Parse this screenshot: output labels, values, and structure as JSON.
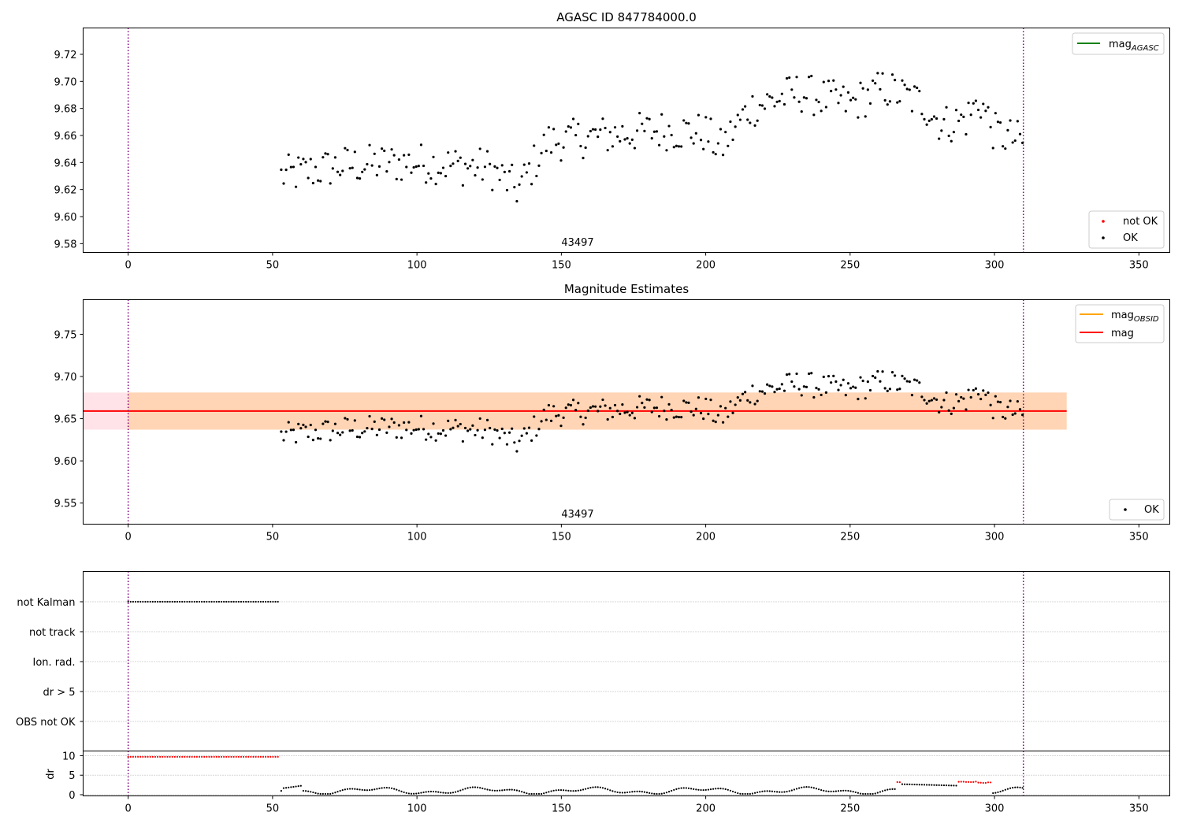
{
  "chart_data": [
    {
      "type": "scatter",
      "title": "AGASC ID 847784000.0",
      "xlim": [
        -15.6,
        360.7
      ],
      "ylim": [
        9.5735,
        9.7395
      ],
      "xticks": [
        0,
        50,
        100,
        150,
        200,
        250,
        300,
        350
      ],
      "yticks": [
        9.58,
        9.6,
        9.62,
        9.64,
        9.66,
        9.68,
        9.7,
        9.72
      ],
      "ytick_labels": [
        "9.58",
        "9.60",
        "9.62",
        "9.64",
        "9.66",
        "9.68",
        "9.70",
        "9.72"
      ],
      "vlines": [
        0,
        310
      ],
      "obsid_label": {
        "text": "43497",
        "x": 155
      },
      "legend_upper": {
        "placement": "top-right",
        "entries": [
          {
            "label": "mag",
            "subscript": "AGASC",
            "color": "#008000"
          }
        ]
      },
      "legend_lower": {
        "placement": "bottom-right",
        "entries": [
          {
            "label": "not OK",
            "color": "#ff0000",
            "marker": "dot"
          },
          {
            "label": "OK",
            "color": "#000000",
            "marker": "dot"
          }
        ]
      },
      "series": [
        {
          "name": "OK",
          "color": "#000000"
        }
      ]
    },
    {
      "type": "scatter",
      "title": "Magnitude Estimates",
      "xlim": [
        -15.6,
        360.7
      ],
      "ylim": [
        9.525,
        9.791
      ],
      "xticks": [
        0,
        50,
        100,
        150,
        200,
        250,
        300,
        350
      ],
      "yticks": [
        9.55,
        9.6,
        9.65,
        9.7,
        9.75
      ],
      "ytick_labels": [
        "9.55",
        "9.60",
        "9.65",
        "9.70",
        "9.75"
      ],
      "vlines": [
        0,
        310
      ],
      "obsid_label": {
        "text": "43497",
        "x": 155
      },
      "mag_line": {
        "value": 9.659,
        "x_range": [
          -15.6,
          325
        ],
        "color": "#ff0000"
      },
      "mag_band": {
        "low": 9.637,
        "high": 9.681,
        "x_range": [
          -15.6,
          325
        ],
        "color": "#ffc0cb"
      },
      "mag_obsid_band": {
        "low": 9.637,
        "high": 9.681,
        "x_range": [
          0,
          325
        ],
        "color": "#ffa500"
      },
      "legend_upper": {
        "placement": "top-right",
        "entries": [
          {
            "label": "mag",
            "subscript": "OBSID",
            "color": "#ffa500"
          },
          {
            "label": "mag",
            "subscript": "",
            "color": "#ff0000"
          }
        ]
      },
      "legend_lower": {
        "placement": "bottom-right",
        "entries": [
          {
            "label": "OK",
            "color": "#000000",
            "marker": "dot"
          }
        ]
      },
      "series": [
        {
          "name": "OK",
          "color": "#000000"
        }
      ]
    },
    {
      "type": "scatter",
      "xlim": [
        -15.6,
        360.7
      ],
      "xticks": [
        0,
        50,
        100,
        150,
        200,
        250,
        300,
        350
      ],
      "vlines": [
        0,
        310
      ],
      "flag_rows": [
        "not Kalman",
        "not track",
        "Ion. rad.",
        "dr > 5",
        "OBS not OK"
      ],
      "flag_points": [
        {
          "row": "not Kalman",
          "x_range": [
            0,
            52.5
          ],
          "color": "#000000"
        }
      ],
      "dr_ylabel": "dr",
      "dr_yticks": [
        0,
        5,
        10
      ],
      "dr_ylim": [
        -0.3,
        11.2
      ],
      "dr_segments": [
        {
          "x_range": [
            0,
            52.5
          ],
          "value": 9.7,
          "color": "#ff0000"
        },
        {
          "x_range": [
            266,
            268
          ],
          "value": 3.2,
          "color": "#ff0000"
        },
        {
          "x_range": [
            287,
            294
          ],
          "value": 3.3,
          "color": "#ff0000"
        },
        {
          "x_range": [
            294,
            299
          ],
          "value": 3.1,
          "color": "#ff0000"
        }
      ]
    }
  ]
}
